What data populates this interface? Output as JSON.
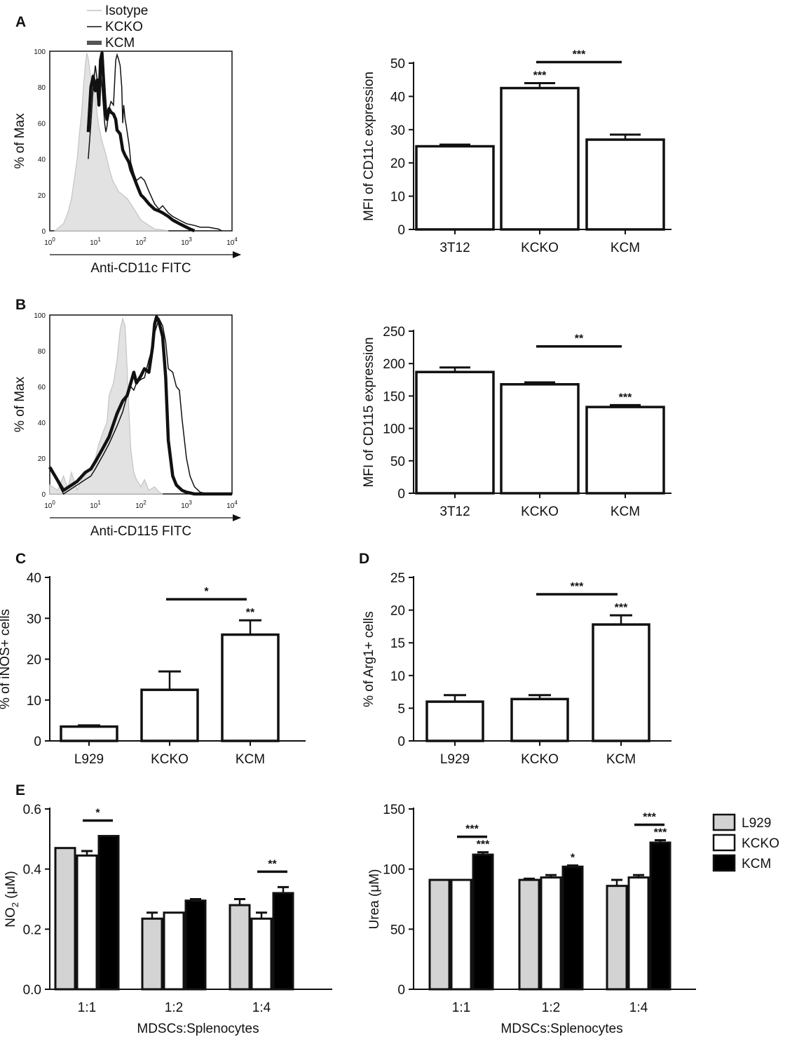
{
  "colors": {
    "l929": "#d3d3d3",
    "kcko": "#ffffff",
    "kcm": "#000000",
    "isotope_fill": "#e2e2e2",
    "isotype_line": "#c4c4c4",
    "axis": "#111111"
  },
  "panels": {
    "A": "A",
    "B": "B",
    "C": "C",
    "D": "D",
    "E": "E"
  },
  "legend_hist": {
    "isotype": "Isotype",
    "kcko": "KCKO",
    "kcm": "KCM"
  },
  "legend_bar": {
    "l929": "L929",
    "kcko": "KCKO",
    "kcm": "KCM"
  },
  "chart_data": [
    {
      "id": "A-hist",
      "type": "line",
      "panel": "A",
      "xlabel": "Anti-CD11c FITC",
      "ylabel": "% of Max",
      "xscale": "log",
      "xlim": [
        1,
        10000
      ],
      "ylim": [
        0,
        100
      ],
      "xtick_base": "10",
      "xtick_exps": [
        "0",
        "1",
        "2",
        "3",
        "4"
      ],
      "yticks": [
        0,
        20,
        40,
        60,
        80,
        100
      ],
      "series": [
        {
          "name": "Isotype",
          "style": "filled",
          "x": [
            1.3,
            1.6,
            2,
            2.5,
            3,
            3.5,
            4,
            4.5,
            5,
            5.5,
            6,
            6.5,
            7,
            7.5,
            8,
            9,
            10,
            11,
            12,
            14,
            16,
            18,
            20,
            24,
            28,
            32,
            40,
            50,
            60,
            80,
            100,
            150,
            200,
            300,
            400
          ],
          "y": [
            0,
            2,
            4,
            10,
            18,
            30,
            40,
            55,
            65,
            80,
            92,
            99,
            96,
            90,
            85,
            88,
            74,
            65,
            58,
            50,
            45,
            40,
            35,
            28,
            25,
            22,
            20,
            18,
            15,
            10,
            6,
            3,
            1,
            0.5,
            0
          ]
        },
        {
          "name": "KCKO",
          "style": "thin",
          "x": [
            7,
            8,
            9,
            10,
            11,
            12,
            13,
            14,
            15,
            16,
            17,
            18,
            20,
            22,
            25,
            28,
            30,
            32,
            35,
            38,
            40,
            42,
            45,
            48,
            50,
            55,
            60,
            70,
            80,
            100,
            120,
            150,
            200,
            250,
            300,
            400,
            500,
            700,
            1000,
            1500,
            2000,
            3000,
            5000,
            6000
          ],
          "y": [
            40,
            60,
            80,
            92,
            84,
            78,
            88,
            80,
            70,
            60,
            55,
            58,
            68,
            72,
            70,
            95,
            98,
            96,
            92,
            80,
            60,
            70,
            62,
            58,
            55,
            48,
            38,
            32,
            28,
            30,
            28,
            22,
            15,
            12,
            14,
            10,
            8,
            6,
            4,
            3,
            2,
            2,
            1,
            0
          ]
        },
        {
          "name": "KCM",
          "style": "thick",
          "x": [
            7,
            8,
            9,
            10,
            11,
            12,
            13,
            14,
            15,
            16,
            17,
            18,
            20,
            22,
            25,
            28,
            30,
            35,
            40,
            45,
            50,
            55,
            60,
            70,
            80,
            100,
            120,
            150,
            200,
            250,
            300,
            400,
            500,
            700,
            1000,
            1200,
            1500
          ],
          "y": [
            55,
            80,
            86,
            78,
            84,
            70,
            95,
            99,
            86,
            74,
            65,
            62,
            68,
            66,
            65,
            62,
            56,
            54,
            45,
            42,
            40,
            38,
            34,
            30,
            26,
            20,
            18,
            15,
            12,
            11,
            10,
            8,
            6,
            4,
            2,
            1,
            0
          ]
        }
      ]
    },
    {
      "id": "A-bar",
      "type": "bar",
      "panel": "A",
      "categories": [
        "3T12",
        "KCKO",
        "KCM"
      ],
      "values": [
        25,
        42.5,
        27
      ],
      "errors": [
        0.5,
        1.5,
        1.5
      ],
      "ylabel": "MFI of CD11c expression",
      "ylim": [
        0,
        50
      ],
      "yticks": [
        0,
        10,
        20,
        30,
        40,
        50
      ],
      "annotations": [
        {
          "cat": 1,
          "text": "***"
        }
      ],
      "brackets": [
        {
          "from": 1,
          "to": 2,
          "text": "***"
        }
      ]
    },
    {
      "id": "B-hist",
      "type": "line",
      "panel": "B",
      "xlabel": "Anti-CD115 FITC",
      "ylabel": "% of Max",
      "xscale": "log",
      "xlim": [
        1,
        10000
      ],
      "ylim": [
        0,
        100
      ],
      "xtick_base": "10",
      "xtick_exps": [
        "0",
        "1",
        "2",
        "3",
        "4"
      ],
      "yticks": [
        0,
        20,
        40,
        60,
        80,
        100
      ],
      "series": [
        {
          "name": "Isotype",
          "style": "filled",
          "x": [
            1,
            1.5,
            2,
            2.5,
            3,
            4,
            5,
            6,
            8,
            10,
            12,
            15,
            18,
            20,
            25,
            30,
            35,
            40,
            45,
            50,
            55,
            60,
            70,
            80,
            100,
            120,
            150,
            200,
            250,
            300
          ],
          "y": [
            5,
            2,
            10,
            3,
            12,
            2,
            8,
            10,
            15,
            20,
            28,
            35,
            40,
            55,
            62,
            75,
            92,
            98,
            94,
            70,
            45,
            25,
            12,
            8,
            4,
            8,
            2,
            4,
            1,
            0
          ]
        },
        {
          "name": "KCKO",
          "style": "thin",
          "x": [
            1,
            2,
            4,
            6,
            8,
            10,
            15,
            20,
            30,
            40,
            50,
            60,
            70,
            80,
            100,
            120,
            150,
            180,
            200,
            250,
            300,
            350,
            400,
            500,
            600,
            700,
            800,
            1000,
            1200,
            1500,
            2000,
            3000,
            10000
          ],
          "y": [
            15,
            0,
            5,
            8,
            10,
            14,
            22,
            28,
            38,
            46,
            55,
            60,
            58,
            62,
            64,
            65,
            75,
            82,
            90,
            98,
            94,
            85,
            70,
            68,
            60,
            58,
            42,
            20,
            10,
            4,
            1,
            0,
            0
          ]
        },
        {
          "name": "KCM",
          "style": "thick",
          "x": [
            1,
            2,
            4,
            6,
            8,
            10,
            15,
            20,
            30,
            40,
            50,
            60,
            70,
            80,
            100,
            120,
            150,
            180,
            200,
            220,
            250,
            300,
            350,
            400,
            500,
            600,
            800,
            1000,
            1500,
            10000
          ],
          "y": [
            15,
            2,
            7,
            12,
            14,
            18,
            26,
            32,
            45,
            52,
            55,
            62,
            68,
            62,
            66,
            70,
            68,
            82,
            95,
            99,
            96,
            88,
            65,
            30,
            10,
            5,
            2,
            1,
            0,
            0
          ]
        }
      ]
    },
    {
      "id": "B-bar",
      "type": "bar",
      "panel": "B",
      "categories": [
        "3T12",
        "KCKO",
        "KCM"
      ],
      "values": [
        187,
        168,
        133
      ],
      "errors": [
        7,
        3,
        3
      ],
      "ylabel": "MFI of CD115 expression",
      "ylim": [
        0,
        250
      ],
      "yticks": [
        0,
        50,
        100,
        150,
        200,
        250
      ],
      "annotations": [
        {
          "cat": 2,
          "text": "***"
        }
      ],
      "brackets": [
        {
          "from": 1,
          "to": 2,
          "text": "**"
        }
      ]
    },
    {
      "id": "C-bar",
      "type": "bar",
      "panel": "C",
      "categories": [
        "L929",
        "KCKO",
        "KCM"
      ],
      "values": [
        3.5,
        12.5,
        26
      ],
      "errors": [
        0.3,
        4.5,
        3.5
      ],
      "ylabel": "% of iNOS+ cells",
      "ylim": [
        0,
        40
      ],
      "yticks": [
        0,
        10,
        20,
        30,
        40
      ],
      "annotations": [
        {
          "cat": 2,
          "text": "**"
        }
      ],
      "brackets": [
        {
          "from": 1,
          "to": 2,
          "text": "*"
        }
      ]
    },
    {
      "id": "D-bar",
      "type": "bar",
      "panel": "D",
      "categories": [
        "L929",
        "KCKO",
        "KCM"
      ],
      "values": [
        6,
        6.4,
        17.8
      ],
      "errors": [
        1,
        0.6,
        1.4
      ],
      "ylabel": "% of Arg1+ cells",
      "ylim": [
        0,
        25
      ],
      "yticks": [
        0,
        5,
        10,
        15,
        20,
        25
      ],
      "annotations": [
        {
          "cat": 2,
          "text": "***"
        }
      ],
      "brackets": [
        {
          "from": 1,
          "to": 2,
          "text": "***"
        }
      ]
    },
    {
      "id": "E-no2",
      "type": "bar",
      "panel": "E",
      "categories": [
        "1:1",
        "1:2",
        "1:4"
      ],
      "series": [
        {
          "name": "L929",
          "values": [
            0.47,
            0.235,
            0.28
          ],
          "errors": [
            0,
            0.02,
            0.02
          ]
        },
        {
          "name": "KCKO",
          "values": [
            0.445,
            0.255,
            0.235
          ],
          "errors": [
            0.015,
            0,
            0.02
          ]
        },
        {
          "name": "KCM",
          "values": [
            0.51,
            0.295,
            0.32
          ],
          "errors": [
            0,
            0.005,
            0.02
          ]
        }
      ],
      "ylabel_main": "NO",
      "ylabel_sub": "2",
      "ylabel_unit": " (μM)",
      "xlabel": "MDSCs:Splenocytes",
      "ylim": [
        0,
        0.6
      ],
      "yticks": [
        "0.0",
        "0.2",
        "0.4",
        "0.6"
      ],
      "annotations": [],
      "brackets": [
        {
          "group": 0,
          "from": 1,
          "to": 2,
          "text": "*"
        },
        {
          "group": 2,
          "from": 1,
          "to": 2,
          "text": "**"
        }
      ]
    },
    {
      "id": "E-urea",
      "type": "bar",
      "panel": "E",
      "categories": [
        "1:1",
        "1:2",
        "1:4"
      ],
      "series": [
        {
          "name": "L929",
          "values": [
            91,
            91,
            86
          ],
          "errors": [
            0,
            1,
            5
          ]
        },
        {
          "name": "KCKO",
          "values": [
            91,
            93,
            93
          ],
          "errors": [
            0,
            2,
            2
          ]
        },
        {
          "name": "KCM",
          "values": [
            112,
            102,
            122
          ],
          "errors": [
            2,
            1,
            2
          ]
        }
      ],
      "ylabel_main": "Urea",
      "ylabel_sub": "",
      "ylabel_unit": " (μM)",
      "xlabel": "MDSCs:Splenocytes",
      "ylim": [
        0,
        150
      ],
      "yticks": [
        "0",
        "50",
        "100",
        "150"
      ],
      "annotations": [
        {
          "group": 0,
          "series": 2,
          "text": "***"
        },
        {
          "group": 1,
          "series": 2,
          "text": "*"
        },
        {
          "group": 2,
          "series": 2,
          "text": "***"
        }
      ],
      "brackets": [
        {
          "group": 0,
          "from": 1,
          "to": 2,
          "text": "***"
        },
        {
          "group": 2,
          "from": 1,
          "to": 2,
          "text": "***"
        }
      ]
    }
  ]
}
